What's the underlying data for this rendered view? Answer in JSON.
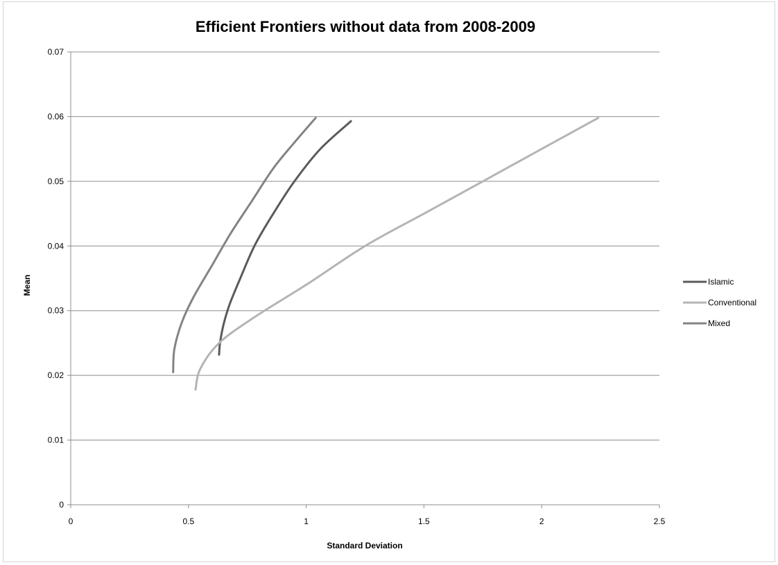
{
  "chart_data": {
    "type": "line",
    "title": "Efficient Frontiers without data from 2008-2009",
    "xlabel": "Standard Deviation",
    "ylabel": "Mean",
    "xlim": [
      0,
      2.5
    ],
    "ylim": [
      0,
      0.07
    ],
    "x_ticks": [
      "0",
      "0.5",
      "1",
      "1.5",
      "2",
      "2.5"
    ],
    "y_ticks": [
      "0",
      "0.01",
      "0.02",
      "0.03",
      "0.04",
      "0.05",
      "0.06",
      "0.07"
    ],
    "grid": "horizontal",
    "legend_position": "right",
    "series": [
      {
        "name": "Islamic",
        "color": "#5a5a5a",
        "points": [
          [
            0.63,
            0.0232
          ],
          [
            0.634,
            0.025
          ],
          [
            0.65,
            0.028
          ],
          [
            0.675,
            0.031
          ],
          [
            0.72,
            0.035
          ],
          [
            0.78,
            0.04
          ],
          [
            0.86,
            0.045
          ],
          [
            0.95,
            0.05
          ],
          [
            1.06,
            0.055
          ],
          [
            1.19,
            0.0593
          ]
        ]
      },
      {
        "name": "Conventional",
        "color": "#b4b4b4",
        "points": [
          [
            0.53,
            0.0178
          ],
          [
            0.55,
            0.021
          ],
          [
            0.63,
            0.025
          ],
          [
            0.78,
            0.029
          ],
          [
            1.0,
            0.034
          ],
          [
            1.25,
            0.04
          ],
          [
            1.5,
            0.045
          ],
          [
            1.75,
            0.05
          ],
          [
            2.0,
            0.055
          ],
          [
            2.24,
            0.0598
          ]
        ]
      },
      {
        "name": "Mixed",
        "color": "#838383",
        "points": [
          [
            0.435,
            0.0205
          ],
          [
            0.44,
            0.024
          ],
          [
            0.47,
            0.028
          ],
          [
            0.52,
            0.032
          ],
          [
            0.6,
            0.037
          ],
          [
            0.68,
            0.042
          ],
          [
            0.77,
            0.047
          ],
          [
            0.86,
            0.052
          ],
          [
            0.95,
            0.056
          ],
          [
            1.04,
            0.0598
          ]
        ]
      }
    ]
  }
}
